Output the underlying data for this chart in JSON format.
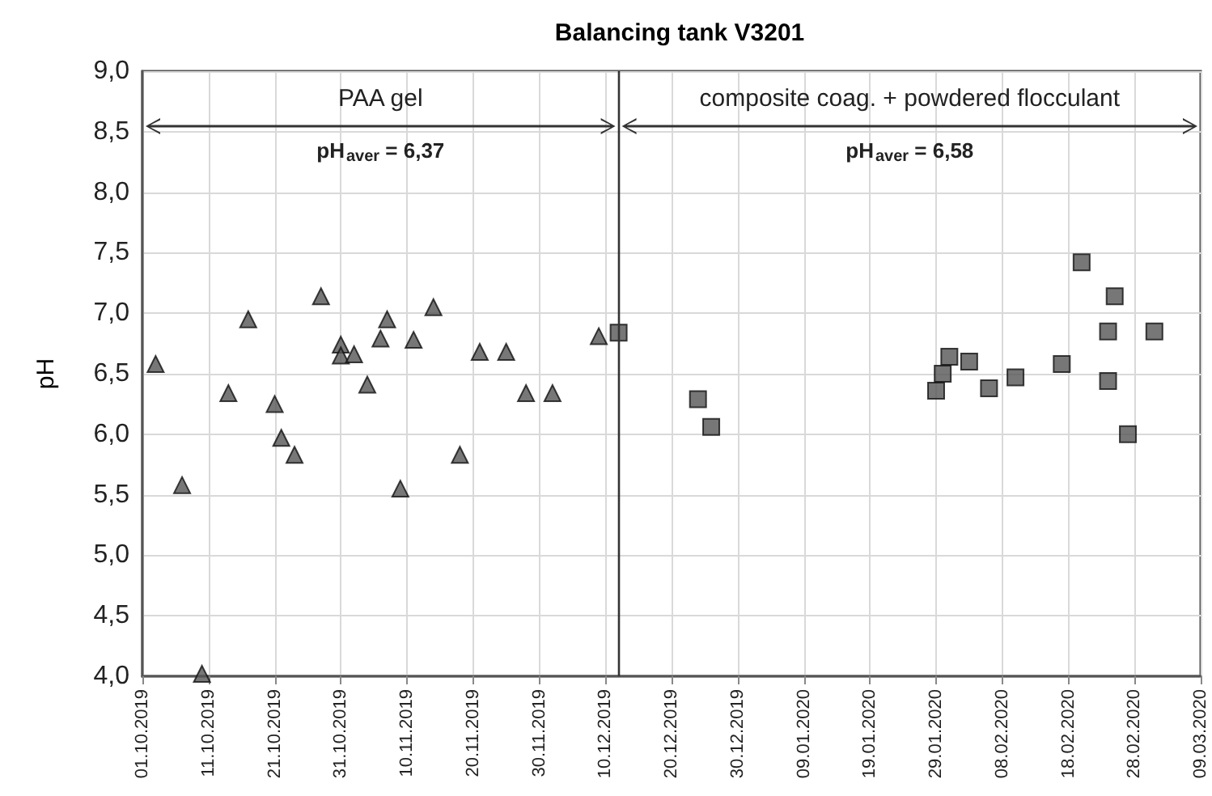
{
  "chart_data": {
    "type": "scatter",
    "title": "Balancing tank V3201",
    "ylabel": "pH",
    "series": [
      {
        "color": "#555555",
        "marker": "triangle",
        "x": [
          "2019-10-03",
          "2019-10-07",
          "2019-10-10",
          "2019-10-14",
          "2019-10-17",
          "2019-10-21",
          "2019-10-22",
          "2019-10-24",
          "2019-10-28",
          "2019-10-31",
          "2019-10-31",
          "2019-11-02",
          "2019-11-04",
          "2019-11-06",
          "2019-11-07",
          "2019-11-09",
          "2019-11-11",
          "2019-11-14",
          "2019-11-18",
          "2019-11-21",
          "2019-11-25",
          "2019-11-28",
          "2019-12-02",
          "2019-12-09"
        ],
        "values": [
          6.58,
          5.58,
          4.02,
          6.34,
          6.95,
          6.25,
          5.97,
          5.83,
          7.14,
          6.74,
          6.65,
          6.66,
          6.41,
          6.79,
          6.95,
          5.55,
          6.78,
          7.05,
          5.83,
          6.68,
          6.68,
          6.34,
          6.34,
          6.81
        ]
      },
      {
        "color": "#555555",
        "marker": "square",
        "x": [
          "2019-12-12",
          "2019-12-24",
          "2019-12-26",
          "2020-01-29",
          "2020-01-30",
          "2020-01-31",
          "2020-02-03",
          "2020-02-06",
          "2020-02-10",
          "2020-02-17",
          "2020-02-20",
          "2020-02-24",
          "2020-02-25",
          "2020-02-24",
          "2020-02-27",
          "2020-03-02"
        ],
        "values": [
          6.84,
          6.29,
          6.06,
          6.36,
          6.5,
          6.64,
          6.6,
          6.38,
          6.47,
          6.58,
          7.42,
          6.85,
          7.14,
          6.44,
          6.0,
          6.85
        ]
      }
    ],
    "xlim": [
      "2019-10-01",
      "2020-03-09"
    ],
    "xticks": [
      {
        "value": "2019-10-01",
        "label": "01.10.2019"
      },
      {
        "value": "2019-10-11",
        "label": "11.10.2019"
      },
      {
        "value": "2019-10-21",
        "label": "21.10.2019"
      },
      {
        "value": "2019-10-31",
        "label": "31.10.2019"
      },
      {
        "value": "2019-11-10",
        "label": "10.11.2019"
      },
      {
        "value": "2019-11-20",
        "label": "20.11.2019"
      },
      {
        "value": "2019-11-30",
        "label": "30.11.2019"
      },
      {
        "value": "2019-12-10",
        "label": "10.12.2019"
      },
      {
        "value": "2019-12-20",
        "label": "20.12.2019"
      },
      {
        "value": "2019-12-30",
        "label": "30.12.2019"
      },
      {
        "value": "2020-01-09",
        "label": "09.01.2020"
      },
      {
        "value": "2020-01-19",
        "label": "19.01.2020"
      },
      {
        "value": "2020-01-29",
        "label": "29.01.2020"
      },
      {
        "value": "2020-02-08",
        "label": "08.02.2020"
      },
      {
        "value": "2020-02-18",
        "label": "18.02.2020"
      },
      {
        "value": "2020-02-28",
        "label": "28.02.2020"
      },
      {
        "value": "2020-03-09",
        "label": "09.03.2020"
      }
    ],
    "ylim": [
      4,
      9
    ],
    "yticks": [
      {
        "value": 4,
        "label": "4,0"
      },
      {
        "value": 4.5,
        "label": "4,5"
      },
      {
        "value": 5,
        "label": "5,0"
      },
      {
        "value": 5.5,
        "label": "5,5"
      },
      {
        "value": 6,
        "label": "6,0"
      },
      {
        "value": 6.5,
        "label": "6,5"
      },
      {
        "value": 7,
        "label": "7,0"
      },
      {
        "value": 7.5,
        "label": "7,5"
      },
      {
        "value": 8,
        "label": "8,0"
      },
      {
        "value": 8.5,
        "label": "8,5"
      },
      {
        "value": 9,
        "label": "9,0"
      }
    ],
    "grid": true,
    "ref_lines": [
      {
        "axis": "x",
        "value": "2019-12-12",
        "color": "#333333"
      }
    ],
    "annotations": [
      "PAA gel",
      "composite coag. + powdered flocculant",
      "pH$_{aver}$ = 6,37",
      "pH$_{aver}$ = 6,58"
    ]
  }
}
